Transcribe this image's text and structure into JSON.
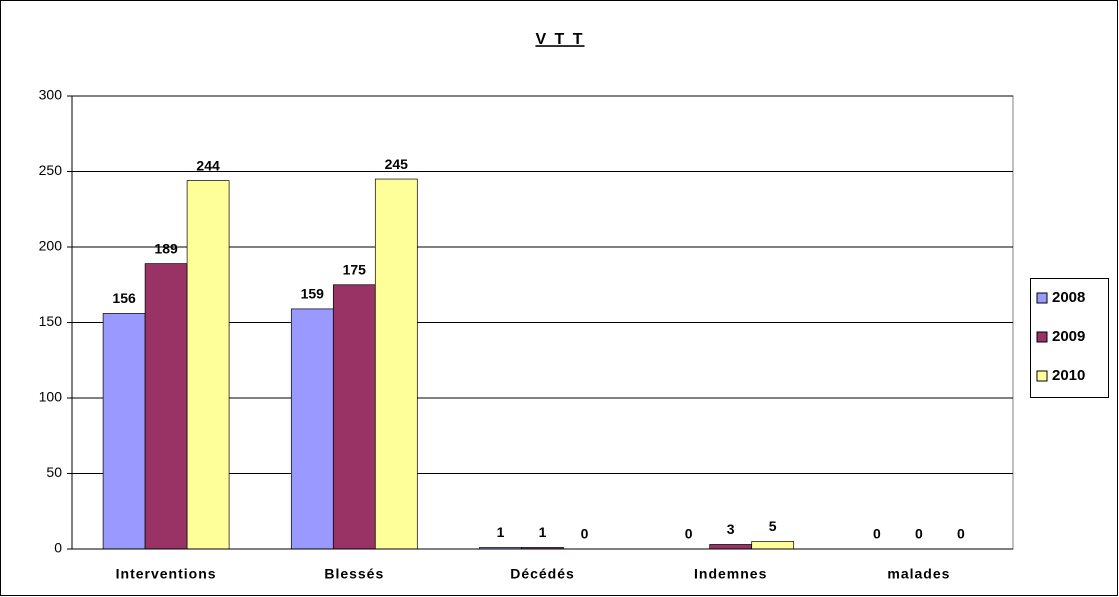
{
  "chart_data": {
    "type": "bar",
    "title": "V T T",
    "categories": [
      "Interventions",
      "Blessés",
      "Décédés",
      "Indemnes",
      "malades"
    ],
    "series": [
      {
        "name": "2008",
        "color": "#9999ff",
        "values": [
          156,
          159,
          1,
          0,
          0
        ]
      },
      {
        "name": "2009",
        "color": "#993366",
        "values": [
          189,
          175,
          1,
          3,
          0
        ]
      },
      {
        "name": "2010",
        "color": "#ffff99",
        "values": [
          244,
          245,
          0,
          5,
          0
        ]
      }
    ],
    "ylim": [
      0,
      300
    ],
    "yticks": [
      0,
      50,
      100,
      150,
      200,
      250,
      300
    ],
    "grid": true,
    "legend": "right"
  }
}
